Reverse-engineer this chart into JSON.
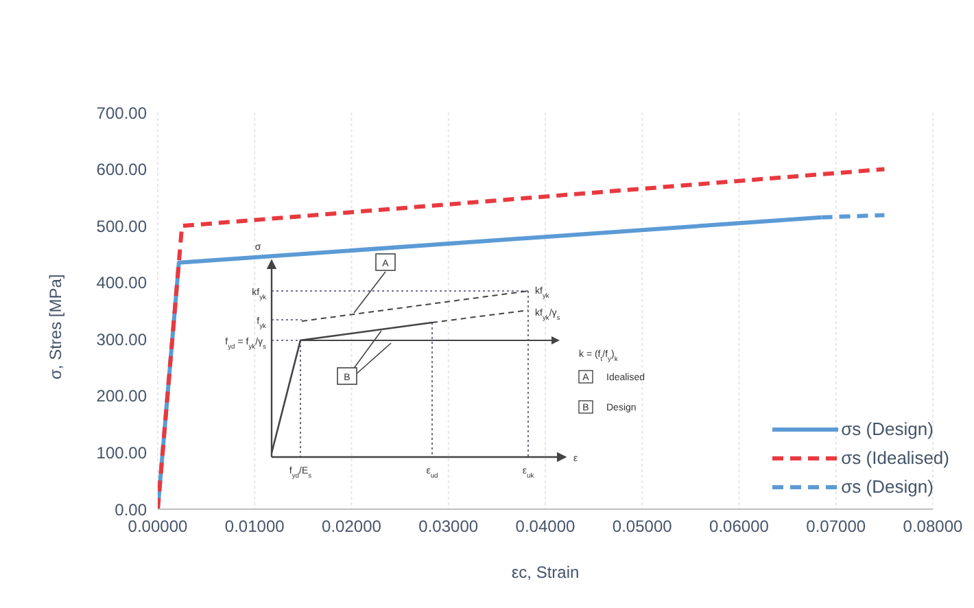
{
  "chart_data": {
    "type": "line",
    "xlabel": "εc, Strain",
    "ylabel": "σ, Stres [MPa]",
    "xlim": [
      0,
      0.08
    ],
    "xticks": [
      {
        "value": 0,
        "label": "0.00000"
      },
      {
        "value": 0.01,
        "label": "0.01000"
      },
      {
        "value": 0.02,
        "label": "0.02000"
      },
      {
        "value": 0.03,
        "label": "0.03000"
      },
      {
        "value": 0.04,
        "label": "0.04000"
      },
      {
        "value": 0.05,
        "label": "0.05000"
      },
      {
        "value": 0.06,
        "label": "0.06000"
      },
      {
        "value": 0.07,
        "label": "0.07000"
      },
      {
        "value": 0.08,
        "label": "0.08000"
      }
    ],
    "ylim": [
      0,
      700
    ],
    "yticks": [
      {
        "value": 0,
        "label": "0.00"
      },
      {
        "value": 100,
        "label": "100.00"
      },
      {
        "value": 200,
        "label": "200.00"
      },
      {
        "value": 300,
        "label": "300.00"
      },
      {
        "value": 400,
        "label": "400.00"
      },
      {
        "value": 500,
        "label": "500.00"
      },
      {
        "value": 600,
        "label": "600.00"
      },
      {
        "value": 700,
        "label": "700.00"
      }
    ],
    "grid": "x",
    "legend": "bottom right",
    "marker": "none",
    "series": [
      {
        "name": "σs (Design)",
        "color": "#5b9bd5",
        "line_style": "solid",
        "x": [
          0,
          0.00218,
          0.0685
        ],
        "values": [
          0,
          435,
          515
        ]
      },
      {
        "name": "σs (Idealised)",
        "color": "#e8393f",
        "line_style": "dashed",
        "x": [
          0,
          0.0025,
          0.075
        ],
        "values": [
          0,
          500,
          600
        ]
      },
      {
        "name": "σs (Design)",
        "color": "#5b9bd5",
        "line_style": "dashed",
        "x": [
          0.0685,
          0.075
        ],
        "values": [
          515,
          519
        ]
      }
    ],
    "annotations": [
      "σ",
      "kf$_{yk}$",
      "f$_{yk}$",
      "f$_{yd}$ = f$_{yk}$/γ$_{s}$",
      "A",
      "kf$_{yk}$",
      "kf$_{yk}$/γ$_{s}$",
      "B",
      "k = (f$_{t}$/f$_{y}$)$_{k}$",
      "A",
      "Idealised",
      "B",
      "Design",
      "f$_{yd}$/E$_{s}$",
      "ε$_{ud}$",
      "ε$_{uk}$",
      "ε"
    ]
  }
}
